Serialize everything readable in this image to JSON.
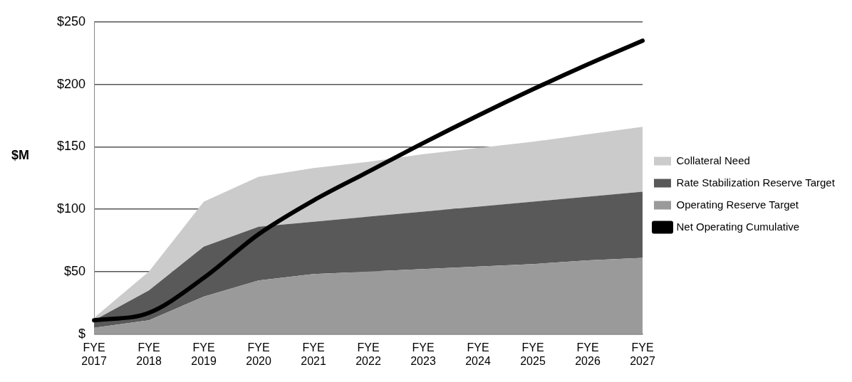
{
  "chart_data": {
    "type": "area",
    "ylabel": "$M",
    "stacked": true,
    "categories": [
      "FYE 2017",
      "FYE 2018",
      "FYE 2019",
      "FYE 2020",
      "FYE 2021",
      "FYE 2022",
      "FYE 2023",
      "FYE 2024",
      "FYE 2025",
      "FYE 2026",
      "FYE 2027"
    ],
    "series": [
      {
        "name": "Operating Reserve Target",
        "color": "#9a9a9a",
        "values": [
          5,
          11,
          30,
          43,
          48,
          50,
          52,
          54,
          56,
          59,
          61
        ]
      },
      {
        "name": "Rate Stabilization Reserve Target",
        "color": "#595959",
        "values": [
          6,
          24,
          40,
          43,
          42,
          44,
          46,
          48,
          50,
          51,
          53
        ]
      },
      {
        "name": "Collateral Need",
        "color": "#cbcbcb",
        "values": [
          2,
          15,
          36,
          40,
          43,
          44,
          46,
          47,
          48,
          50,
          52
        ]
      },
      {
        "name": "Net Operating Cumulative",
        "type": "line",
        "color": "#000000",
        "values": [
          11,
          17,
          45,
          80,
          107,
          130,
          153,
          175,
          196,
          216,
          235
        ]
      }
    ],
    "ylim": [
      0,
      250
    ],
    "yticks": [
      {
        "value": 0,
        "label": "$"
      },
      {
        "value": 50,
        "label": "$50"
      },
      {
        "value": 100,
        "label": "$100"
      },
      {
        "value": 150,
        "label": "$150"
      },
      {
        "value": 200,
        "label": "$200"
      },
      {
        "value": 250,
        "label": "$250"
      }
    ],
    "grid": "y",
    "legend": "right",
    "marker": "none"
  }
}
